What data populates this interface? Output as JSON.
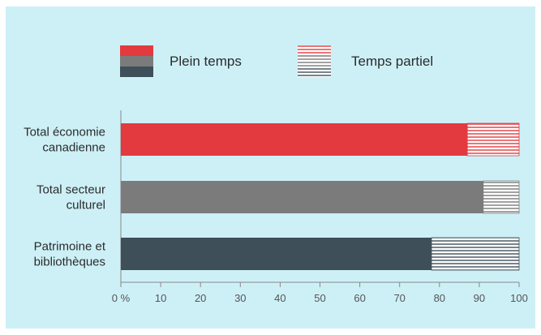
{
  "chart_data": {
    "type": "bar",
    "orientation": "horizontal",
    "stacked": true,
    "title": "",
    "xlabel": "",
    "ylabel": "",
    "xlim": [
      0,
      100
    ],
    "ticks": [
      "0 %",
      "10",
      "20",
      "30",
      "40",
      "50",
      "60",
      "70",
      "80",
      "90",
      "100"
    ],
    "legend": {
      "placement": "top",
      "items": [
        {
          "label": "Plein temps",
          "style": "solid"
        },
        {
          "label": "Temps partiel",
          "style": "hatched"
        }
      ]
    },
    "categories": [
      [
        "Total économie",
        "canadienne"
      ],
      [
        "Total secteur",
        "culturel"
      ],
      [
        "Patrimoine et",
        "bibliothèques"
      ]
    ],
    "category_colors": [
      "#e23a3e",
      "#7b7b7b",
      "#3e4f59"
    ],
    "series": [
      {
        "name": "Plein temps",
        "values": [
          87,
          91,
          78
        ]
      },
      {
        "name": "Temps partiel",
        "values": [
          13,
          9,
          22
        ]
      }
    ],
    "grid": false
  },
  "colors": {
    "background": "#cdf0f7",
    "axis": "#888888"
  }
}
